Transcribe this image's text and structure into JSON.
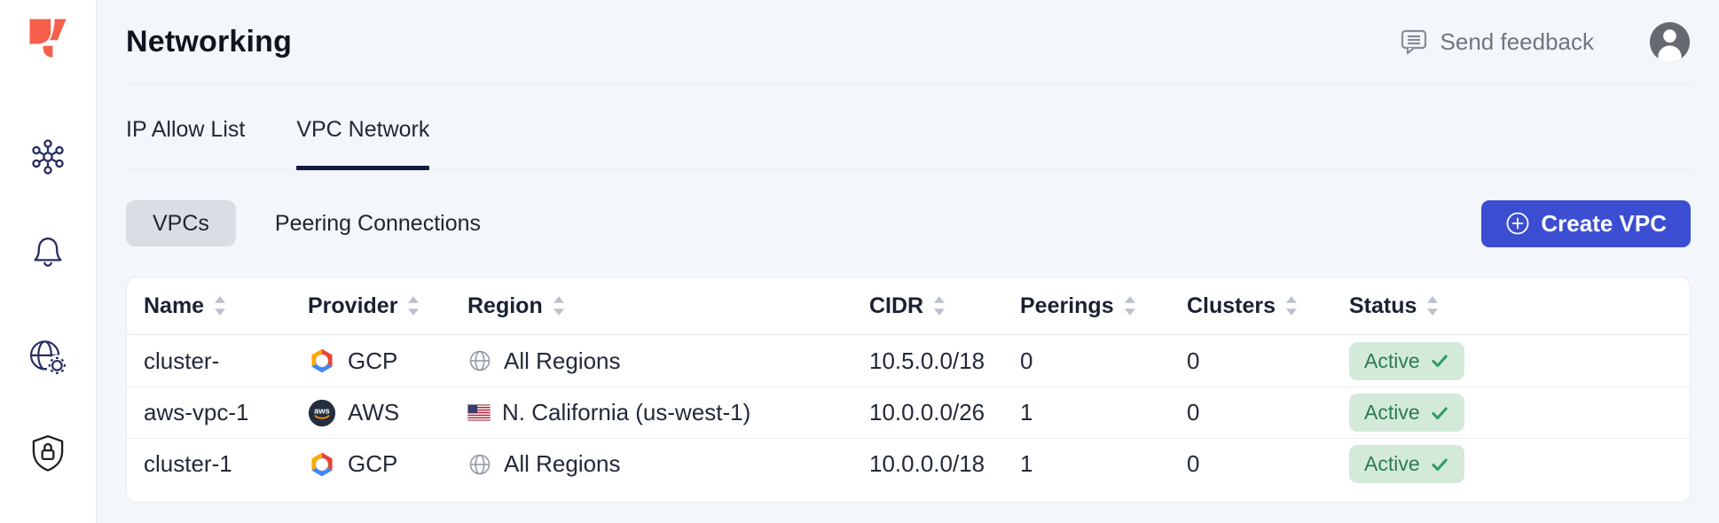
{
  "header": {
    "title": "Networking",
    "send_feedback_label": "Send feedback"
  },
  "sidebar": {
    "logo_icon": "yugabyte-logo",
    "items": [
      {
        "icon": "cluster-icon"
      },
      {
        "icon": "bell-icon"
      },
      {
        "icon": "globe-gear-icon"
      },
      {
        "icon": "shield-lock-icon"
      }
    ]
  },
  "tabs": [
    {
      "label": "IP Allow List",
      "active": false
    },
    {
      "label": "VPC Network",
      "active": true
    }
  ],
  "subtabs": [
    {
      "label": "VPCs",
      "active": true
    },
    {
      "label": "Peering Connections",
      "active": false
    }
  ],
  "create_vpc": {
    "label": "Create VPC",
    "icon": "plus-circle-icon"
  },
  "table": {
    "columns": [
      "Name",
      "Provider",
      "Region",
      "CIDR",
      "Peerings",
      "Clusters",
      "Status"
    ],
    "rows": [
      {
        "name": "cluster-",
        "provider": "GCP",
        "provider_icon": "gcp-icon",
        "region": "All Regions",
        "region_icon": "globe-icon",
        "cidr": "10.5.0.0/18",
        "peerings": "0",
        "clusters": "0",
        "status": "Active"
      },
      {
        "name": "aws-vpc-1",
        "provider": "AWS",
        "provider_icon": "aws-icon",
        "region": "N. California (us-west-1)",
        "region_icon": "us-flag-icon",
        "cidr": "10.0.0.0/26",
        "peerings": "1",
        "clusters": "0",
        "status": "Active"
      },
      {
        "name": "cluster-1",
        "provider": "GCP",
        "provider_icon": "gcp-icon",
        "region": "All Regions",
        "region_icon": "globe-icon",
        "cidr": "10.0.0.0/18",
        "peerings": "1",
        "clusters": "0",
        "status": "Active"
      }
    ]
  },
  "colors": {
    "accent_blue": "#3b4ed2",
    "brand_orange": "#f4604c",
    "active_tab_underline": "#141a3e",
    "badge_bg": "#d3eadb",
    "badge_text": "#2d7b54",
    "badge_check": "#2f9e63",
    "sidebar_icon_navy": "#272c63"
  }
}
